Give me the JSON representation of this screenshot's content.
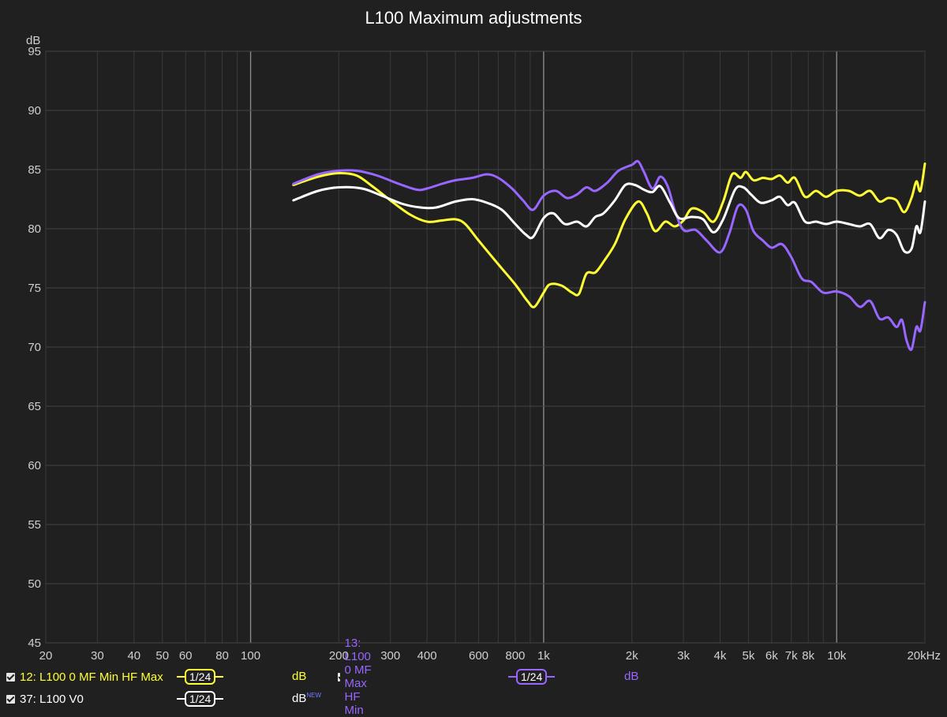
{
  "chart_data": {
    "type": "line",
    "title": "L100 Maximum adjustments",
    "ylabel": "dB",
    "x_scale": "log",
    "xlim": [
      20,
      20000
    ],
    "ylim": [
      45,
      95
    ],
    "grid": true,
    "y_ticks": [
      "45",
      "50",
      "55",
      "60",
      "65",
      "70",
      "75",
      "80",
      "85",
      "90",
      "95"
    ],
    "x_ticks": [
      {
        "v": 20,
        "label": "20"
      },
      {
        "v": 30,
        "label": "30"
      },
      {
        "v": 40,
        "label": "40"
      },
      {
        "v": 50,
        "label": "50"
      },
      {
        "v": 60,
        "label": "60"
      },
      {
        "v": 80,
        "label": "80"
      },
      {
        "v": 100,
        "label": "100"
      },
      {
        "v": 200,
        "label": "200"
      },
      {
        "v": 300,
        "label": "300"
      },
      {
        "v": 400,
        "label": "400"
      },
      {
        "v": 600,
        "label": "600"
      },
      {
        "v": 800,
        "label": "800"
      },
      {
        "v": 1000,
        "label": "1k"
      },
      {
        "v": 2000,
        "label": "2k"
      },
      {
        "v": 3000,
        "label": "3k"
      },
      {
        "v": 4000,
        "label": "4k"
      },
      {
        "v": 5000,
        "label": "5k"
      },
      {
        "v": 6000,
        "label": "6k"
      },
      {
        "v": 7000,
        "label": "7k"
      },
      {
        "v": 8000,
        "label": "8k"
      },
      {
        "v": 10000,
        "label": "10k"
      },
      {
        "v": 20000,
        "label": "20kHz"
      }
    ],
    "series": [
      {
        "name": "12: L100 0 MF Min HF Max",
        "color": "#ffff33",
        "points": [
          [
            140,
            83.7
          ],
          [
            170,
            84.4
          ],
          [
            200,
            84.7
          ],
          [
            230,
            84.5
          ],
          [
            260,
            83.6
          ],
          [
            300,
            82.4
          ],
          [
            350,
            81.2
          ],
          [
            400,
            80.6
          ],
          [
            450,
            80.7
          ],
          [
            500,
            80.8
          ],
          [
            540,
            80.4
          ],
          [
            600,
            79.0
          ],
          [
            700,
            77.0
          ],
          [
            800,
            75.3
          ],
          [
            880,
            73.9
          ],
          [
            930,
            73.4
          ],
          [
            1000,
            74.6
          ],
          [
            1050,
            75.3
          ],
          [
            1150,
            75.2
          ],
          [
            1250,
            74.6
          ],
          [
            1320,
            74.5
          ],
          [
            1400,
            76.2
          ],
          [
            1500,
            76.3
          ],
          [
            1600,
            77.2
          ],
          [
            1750,
            78.7
          ],
          [
            1900,
            80.8
          ],
          [
            2100,
            82.3
          ],
          [
            2250,
            81.3
          ],
          [
            2400,
            79.8
          ],
          [
            2600,
            80.6
          ],
          [
            2800,
            80.2
          ],
          [
            3000,
            80.7
          ],
          [
            3200,
            81.7
          ],
          [
            3500,
            81.4
          ],
          [
            3800,
            80.6
          ],
          [
            4100,
            82.3
          ],
          [
            4400,
            84.6
          ],
          [
            4700,
            84.3
          ],
          [
            4900,
            84.8
          ],
          [
            5200,
            84.1
          ],
          [
            5600,
            84.3
          ],
          [
            6000,
            84.2
          ],
          [
            6400,
            84.5
          ],
          [
            6800,
            83.9
          ],
          [
            7200,
            84.3
          ],
          [
            7800,
            82.7
          ],
          [
            8500,
            83.2
          ],
          [
            9200,
            82.7
          ],
          [
            10000,
            83.2
          ],
          [
            11000,
            83.2
          ],
          [
            12000,
            82.8
          ],
          [
            13000,
            83.2
          ],
          [
            14000,
            82.3
          ],
          [
            15000,
            82.6
          ],
          [
            16000,
            82.4
          ],
          [
            17000,
            81.4
          ],
          [
            18000,
            82.6
          ],
          [
            18700,
            84.0
          ],
          [
            19300,
            83.2
          ],
          [
            20000,
            85.5
          ]
        ]
      },
      {
        "name": "13: L100 0 MF Max HF Min",
        "color": "#9966ff",
        "points": [
          [
            140,
            83.8
          ],
          [
            170,
            84.6
          ],
          [
            200,
            84.9
          ],
          [
            230,
            84.9
          ],
          [
            270,
            84.5
          ],
          [
            320,
            83.8
          ],
          [
            370,
            83.3
          ],
          [
            400,
            83.4
          ],
          [
            450,
            83.8
          ],
          [
            500,
            84.1
          ],
          [
            570,
            84.3
          ],
          [
            640,
            84.6
          ],
          [
            700,
            84.3
          ],
          [
            780,
            83.4
          ],
          [
            850,
            82.4
          ],
          [
            920,
            81.6
          ],
          [
            1000,
            82.8
          ],
          [
            1100,
            83.2
          ],
          [
            1200,
            82.6
          ],
          [
            1300,
            82.9
          ],
          [
            1400,
            83.5
          ],
          [
            1500,
            83.2
          ],
          [
            1650,
            83.9
          ],
          [
            1800,
            84.9
          ],
          [
            2000,
            85.4
          ],
          [
            2100,
            85.7
          ],
          [
            2200,
            84.8
          ],
          [
            2350,
            83.4
          ],
          [
            2500,
            84.4
          ],
          [
            2650,
            83.6
          ],
          [
            2800,
            81.6
          ],
          [
            3000,
            79.9
          ],
          [
            3300,
            79.9
          ],
          [
            3600,
            79.0
          ],
          [
            4000,
            78.0
          ],
          [
            4300,
            79.6
          ],
          [
            4600,
            81.9
          ],
          [
            4900,
            81.6
          ],
          [
            5200,
            79.8
          ],
          [
            5600,
            79.0
          ],
          [
            6000,
            78.4
          ],
          [
            6500,
            78.7
          ],
          [
            7000,
            77.6
          ],
          [
            7600,
            75.8
          ],
          [
            8200,
            75.5
          ],
          [
            9000,
            74.6
          ],
          [
            10000,
            74.7
          ],
          [
            11000,
            74.3
          ],
          [
            12000,
            73.4
          ],
          [
            13000,
            73.9
          ],
          [
            14000,
            72.4
          ],
          [
            15000,
            72.5
          ],
          [
            16000,
            71.7
          ],
          [
            16700,
            72.3
          ],
          [
            17300,
            70.6
          ],
          [
            18000,
            69.8
          ],
          [
            18700,
            71.7
          ],
          [
            19300,
            71.4
          ],
          [
            20000,
            73.8
          ]
        ]
      },
      {
        "name": "37: L100 V0",
        "color": "#ffffff",
        "points": [
          [
            140,
            82.4
          ],
          [
            170,
            83.2
          ],
          [
            200,
            83.5
          ],
          [
            240,
            83.4
          ],
          [
            280,
            82.8
          ],
          [
            330,
            82.1
          ],
          [
            380,
            81.8
          ],
          [
            430,
            81.8
          ],
          [
            500,
            82.3
          ],
          [
            570,
            82.5
          ],
          [
            640,
            82.2
          ],
          [
            720,
            81.6
          ],
          [
            800,
            80.4
          ],
          [
            870,
            79.5
          ],
          [
            920,
            79.3
          ],
          [
            1000,
            80.9
          ],
          [
            1080,
            81.3
          ],
          [
            1180,
            80.4
          ],
          [
            1300,
            80.6
          ],
          [
            1400,
            80.2
          ],
          [
            1500,
            81.0
          ],
          [
            1600,
            81.3
          ],
          [
            1750,
            82.4
          ],
          [
            1900,
            83.7
          ],
          [
            2050,
            83.7
          ],
          [
            2200,
            83.3
          ],
          [
            2350,
            83.1
          ],
          [
            2500,
            83.6
          ],
          [
            2700,
            82.2
          ],
          [
            2900,
            80.9
          ],
          [
            3200,
            81.0
          ],
          [
            3500,
            80.8
          ],
          [
            3800,
            79.7
          ],
          [
            4100,
            80.8
          ],
          [
            4500,
            83.3
          ],
          [
            4800,
            83.5
          ],
          [
            5100,
            82.9
          ],
          [
            5500,
            82.2
          ],
          [
            6000,
            82.4
          ],
          [
            6400,
            82.7
          ],
          [
            6800,
            82.0
          ],
          [
            7200,
            82.2
          ],
          [
            7800,
            80.6
          ],
          [
            8500,
            80.6
          ],
          [
            9200,
            80.4
          ],
          [
            10000,
            80.6
          ],
          [
            11000,
            80.4
          ],
          [
            12000,
            80.2
          ],
          [
            13000,
            80.4
          ],
          [
            14000,
            79.2
          ],
          [
            15000,
            79.9
          ],
          [
            16000,
            79.5
          ],
          [
            17000,
            78.1
          ],
          [
            18000,
            78.3
          ],
          [
            18700,
            80.2
          ],
          [
            19300,
            79.7
          ],
          [
            20000,
            82.3
          ]
        ]
      }
    ]
  },
  "legend": {
    "items": [
      {
        "label": "12: L100 0 MF Min HF Max",
        "smoothing": "1/24",
        "unit": "dB",
        "color": "#ffff33",
        "checked": true
      },
      {
        "label": "13: L100 0 MF Max HF Min",
        "smoothing": "1/24",
        "unit": "dB",
        "color": "#9966ff",
        "checked": true
      },
      {
        "label": "37: L100 V0",
        "smoothing": "1/24",
        "unit": "dB",
        "unit_tag": "NEW",
        "color": "#ffffff",
        "checked": true
      }
    ]
  }
}
